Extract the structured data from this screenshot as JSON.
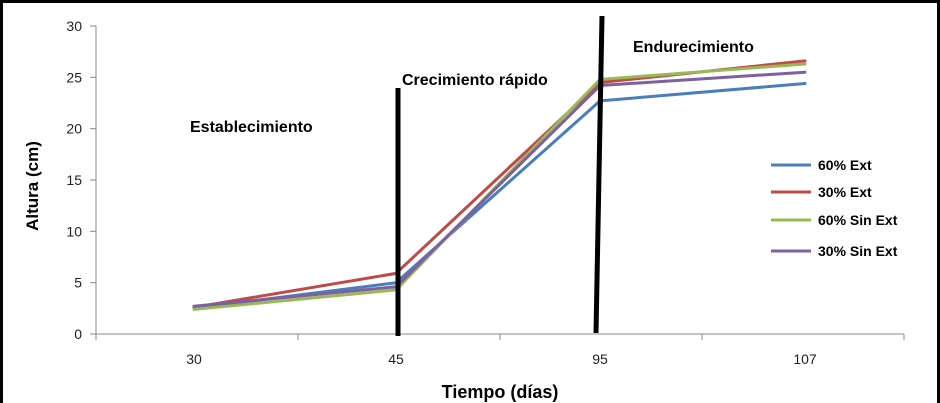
{
  "chart_data": {
    "type": "line",
    "title": "",
    "xlabel": "Tiempo (días)",
    "ylabel": "Altura (cm)",
    "categories": [
      "30",
      "45",
      "95",
      "107"
    ],
    "ylim": [
      0,
      30
    ],
    "yticks": [
      0,
      5,
      10,
      15,
      20,
      25,
      30
    ],
    "grid": false,
    "legend_position": "right",
    "series": [
      {
        "name": "60% Ext",
        "color": "#4a7ebb",
        "values": [
          2.5,
          5.0,
          22.7,
          24.4
        ]
      },
      {
        "name": "30% Ext",
        "color": "#be4b48",
        "values": [
          2.6,
          5.9,
          24.5,
          26.6
        ]
      },
      {
        "name": "60% Sin Ext",
        "color": "#98b954",
        "values": [
          2.4,
          4.3,
          24.8,
          26.3
        ]
      },
      {
        "name": "30% Sin Ext",
        "color": "#7d60a0",
        "values": [
          2.7,
          4.6,
          24.2,
          25.5
        ]
      }
    ],
    "annotations": [
      {
        "text": "Establecimiento"
      },
      {
        "text": "Crecimiento rápido"
      },
      {
        "text": "Endurecimiento"
      }
    ]
  }
}
